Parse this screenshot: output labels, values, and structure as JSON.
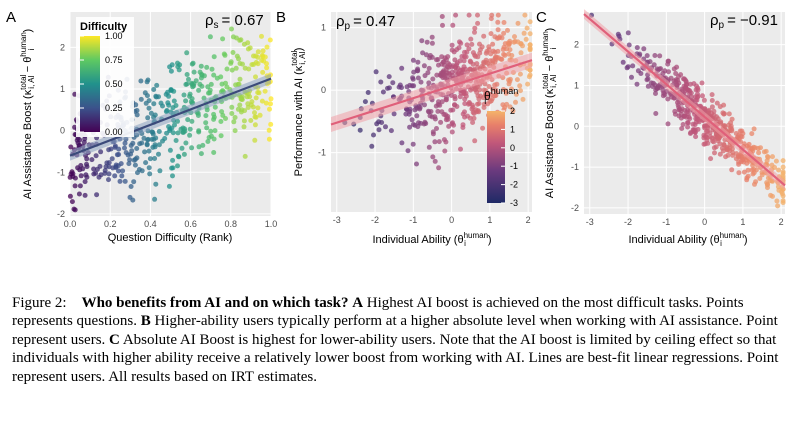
{
  "chart_data": [
    {
      "type": "scatter",
      "panel_label": "A",
      "stat_symbol": "ρ",
      "stat_sub": "s",
      "stat_value": "= 0.67",
      "xlabel": "Question Difficulty (Rank)",
      "ylabel_prefix": "AI Assistance Boost (κ",
      "ylabel_sub": "i, AI",
      "ylabel_sup": "total",
      "ylabel_mid": " − θ",
      "ylabel_sub2": "i",
      "ylabel_sup2": "human",
      "ylabel_suffix": ")",
      "xlim": [
        0,
        1
      ],
      "ylim": [
        -2.05,
        2.85
      ],
      "xticks": [
        "0.0",
        "0.2",
        "0.4",
        "0.6",
        "0.8",
        "1.0"
      ],
      "xtick_values": [
        0,
        0.2,
        0.4,
        0.6,
        0.8,
        1.0
      ],
      "yticks": [
        "-2",
        "-1",
        "0",
        "1",
        "2"
      ],
      "ytick_values": [
        -2,
        -1,
        0,
        1,
        2
      ],
      "fit": {
        "x0": 0,
        "y0": -0.6,
        "x1": 1,
        "y1": 1.25
      },
      "n_points": 520,
      "noise_sd": 0.72,
      "legend": {
        "title": "Difficulty",
        "labels": [
          "1.00",
          "0.75",
          "0.50",
          "0.25",
          "0.00"
        ],
        "values": [
          1.0,
          0.75,
          0.5,
          0.25,
          0.0
        ]
      }
    },
    {
      "type": "scatter",
      "panel_label": "B",
      "stat_symbol": "ρ",
      "stat_sub": "p",
      "stat_value": "= 0.47",
      "xlabel_prefix": "Individual Ability (θ",
      "xlabel_sub": "i",
      "xlabel_sup": "human",
      "xlabel_suffix": ")",
      "ylabel_prefix": "Performance with AI (κ",
      "ylabel_sub": "i, AI",
      "ylabel_sup": "total",
      "ylabel_suffix": ")",
      "xlim": [
        -3.15,
        2.1
      ],
      "ylim": [
        -1.95,
        1.25
      ],
      "xticks": [
        "-3",
        "-2",
        "-1",
        "0",
        "1",
        "2"
      ],
      "xtick_values": [
        -3,
        -2,
        -1,
        0,
        1,
        2
      ],
      "yticks": [
        "-1",
        "0",
        "1"
      ],
      "ytick_values": [
        -1,
        0,
        1
      ],
      "fit": {
        "x0": -3.15,
        "y0": -0.55,
        "x1": 2.1,
        "y1": 0.48
      },
      "n_points": 520,
      "noise_sd": 0.42,
      "legend": {
        "title": "θ",
        "title_sub": "i",
        "title_sup": "human",
        "labels": [
          "2",
          "1",
          "0",
          "-1",
          "-2",
          "-3"
        ],
        "values": [
          2,
          1,
          0,
          -1,
          -2,
          -3
        ]
      }
    },
    {
      "type": "scatter",
      "panel_label": "C",
      "stat_symbol": "ρ",
      "stat_sub": "p",
      "stat_value": "= −0.91",
      "xlabel_prefix": "Individual Ability (θ",
      "xlabel_sub": "i",
      "xlabel_sup": "human",
      "xlabel_suffix": ")",
      "ylabel_prefix": "AI Assistance Boost (κ",
      "ylabel_sub": "i, AI",
      "ylabel_sup": "total",
      "ylabel_mid": " − θ",
      "ylabel_sub2": "i",
      "ylabel_sup2": "human",
      "ylabel_suffix": ")",
      "xlim": [
        -3.15,
        2.1
      ],
      "ylim": [
        -2.15,
        2.8
      ],
      "xticks": [
        "-3",
        "-2",
        "-1",
        "0",
        "1",
        "2"
      ],
      "xtick_values": [
        -3,
        -2,
        -1,
        0,
        1,
        2
      ],
      "yticks": [
        "-2",
        "-1",
        "0",
        "1",
        "2"
      ],
      "ytick_values": [
        -2,
        -1,
        0,
        1,
        2
      ],
      "fit": {
        "x0": -3.15,
        "y0": 2.75,
        "x1": 2.1,
        "y1": -1.45
      },
      "n_points": 520,
      "noise_sd": 0.32
    }
  ],
  "caption": {
    "figure_label": "Figure 2:",
    "title": "Who benefits from AI and on which task?",
    "a_label": "A",
    "a_text": "Highest AI boost is achieved on the most difficult tasks. Points represents questions.",
    "b_label": "B",
    "b_text": "Higher-ability users typically perform at a higher absolute level when working with AI assistance. Point represent users.",
    "c_label": "C",
    "c_text": "Absolute AI Boost is highest for lower-ability users. Note that the AI boost is limited by ceiling effect so that individuals with higher ability receive a relatively lower boost from working with AI. Lines are best-fit linear regressions. Point represent users. All results based on IRT estimates."
  }
}
